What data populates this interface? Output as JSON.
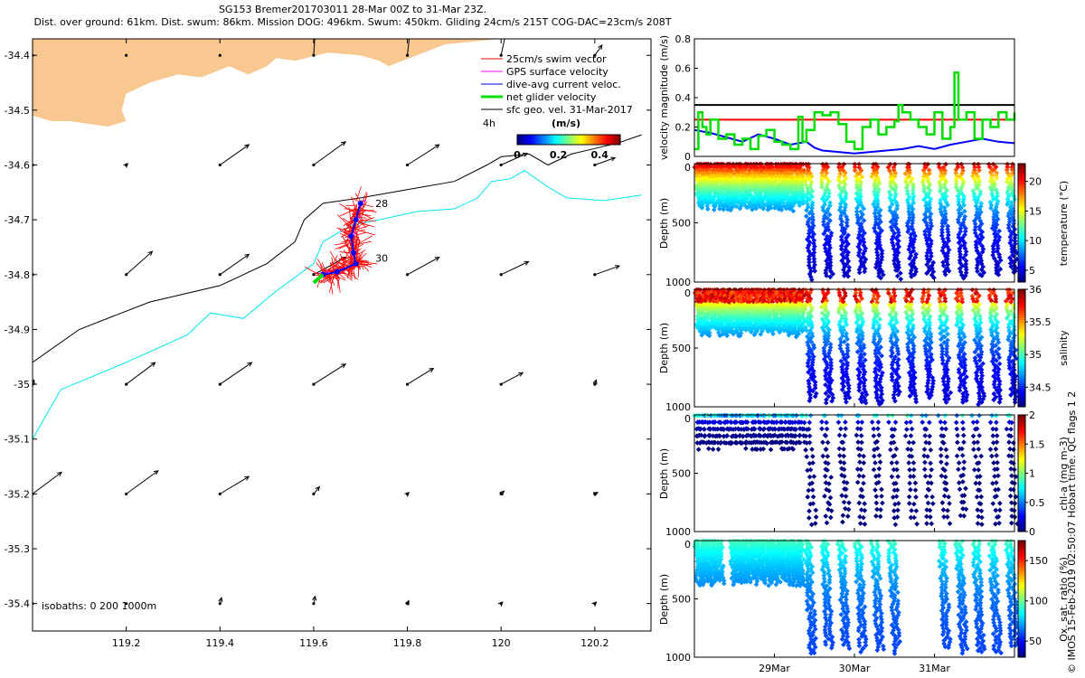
{
  "titles": {
    "line1": "SG153 Bremer201703011 28-Mar 00Z to 31-Mar 23Z.",
    "line2": "Dist. over ground: 61km. Dist. swum: 86km. Mission DOG: 496km. Swum: 450km. Gliding 24cm/s 215T COG-DAC=23cm/s 208T"
  },
  "watermark": "© IMOS 15-Feb-2019 02:50:07 Hobart time. QC flags 1  2",
  "colors": {
    "land": "#f9c891",
    "isobath200": "#000000",
    "isobath1000": "#00e5ee",
    "swim": "#ff0000",
    "gps": "#ff00ff",
    "dac": "#0000ff",
    "net": "#00dd00",
    "sfc": "#000000"
  },
  "chart_data": [
    {
      "type": "map",
      "xlim": [
        119.0,
        120.32
      ],
      "ylim": [
        -35.45,
        -34.37
      ],
      "xticks": [
        119.2,
        119.4,
        119.6,
        119.8,
        120,
        120.2
      ],
      "xtick_labels": [
        "119.2",
        "119.4",
        "119.6",
        "119.8",
        "120",
        "120.2"
      ],
      "yticks": [
        -34.4,
        -34.5,
        -34.6,
        -34.7,
        -34.8,
        -34.9,
        -35,
        -35.1,
        -35.2,
        -35.3,
        -35.4
      ],
      "ytick_labels": [
        "-34.4",
        "-34.5",
        "-34.6",
        "-34.7",
        "-34.8",
        "-34.9",
        "-35",
        "-35.1",
        "-35.2",
        "-35.3",
        "-35.4"
      ],
      "legend": [
        {
          "label": "25cm/s swim vector",
          "color": "#ff0000"
        },
        {
          "label": "GPS surface velocity",
          "color": "#ff00ff"
        },
        {
          "label": "dive-avg current veloc.",
          "color": "#0000ff"
        },
        {
          "label": "net glider velocity",
          "color": "#00dd00"
        },
        {
          "label": "sfc geo. vel. 31-Mar-2017",
          "color": "#000000"
        }
      ],
      "legend_extra": "4h",
      "colorbar": {
        "title": "(m/s)",
        "ticks": [
          0,
          0.2,
          0.4
        ],
        "tick_labels": [
          "0",
          "0.2",
          "0.4"
        ],
        "range": [
          0,
          0.5
        ]
      },
      "isobath_label": "isobaths: 0   200  1000m",
      "annotations": [
        {
          "text": "28",
          "lon": 119.72,
          "lat": -34.67
        },
        {
          "text": "30",
          "lon": 119.72,
          "lat": -34.77
        }
      ],
      "land": [
        [
          119.0,
          -34.37
        ],
        [
          120.0,
          -34.37
        ],
        [
          119.88,
          -34.38
        ],
        [
          119.82,
          -34.4
        ],
        [
          119.76,
          -34.42
        ],
        [
          119.74,
          -34.41
        ],
        [
          119.7,
          -34.4
        ],
        [
          119.63,
          -34.395
        ],
        [
          119.56,
          -34.41
        ],
        [
          119.52,
          -34.405
        ],
        [
          119.5,
          -34.42
        ],
        [
          119.46,
          -34.435
        ],
        [
          119.42,
          -34.42
        ],
        [
          119.36,
          -34.44
        ],
        [
          119.31,
          -34.435
        ],
        [
          119.25,
          -34.45
        ],
        [
          119.2,
          -34.47
        ],
        [
          119.19,
          -34.5
        ],
        [
          119.2,
          -34.52
        ],
        [
          119.16,
          -34.53
        ],
        [
          119.12,
          -34.525
        ],
        [
          119.08,
          -34.52
        ],
        [
          119.04,
          -34.52
        ],
        [
          119.0,
          -34.51
        ]
      ],
      "isobath_200": [
        [
          119.0,
          -34.96
        ],
        [
          119.1,
          -34.9
        ],
        [
          119.25,
          -34.85
        ],
        [
          119.4,
          -34.82
        ],
        [
          119.5,
          -34.78
        ],
        [
          119.56,
          -34.74
        ],
        [
          119.58,
          -34.7
        ],
        [
          119.62,
          -34.67
        ],
        [
          119.7,
          -34.66
        ],
        [
          119.8,
          -34.645
        ],
        [
          119.9,
          -34.63
        ],
        [
          119.97,
          -34.6
        ],
        [
          120.0,
          -34.585
        ],
        [
          120.06,
          -34.58
        ],
        [
          120.1,
          -34.6
        ],
        [
          120.15,
          -34.58
        ],
        [
          120.2,
          -34.57
        ],
        [
          120.25,
          -34.56
        ],
        [
          120.3,
          -34.545
        ]
      ],
      "isobath_1000": [
        [
          119.0,
          -35.1
        ],
        [
          119.06,
          -35.01
        ],
        [
          119.2,
          -34.96
        ],
        [
          119.33,
          -34.91
        ],
        [
          119.38,
          -34.87
        ],
        [
          119.45,
          -34.88
        ],
        [
          119.52,
          -34.83
        ],
        [
          119.6,
          -34.78
        ],
        [
          119.62,
          -34.74
        ],
        [
          119.68,
          -34.71
        ],
        [
          119.74,
          -34.7
        ],
        [
          119.82,
          -34.685
        ],
        [
          119.9,
          -34.68
        ],
        [
          119.95,
          -34.66
        ],
        [
          119.98,
          -34.63
        ],
        [
          120.02,
          -34.625
        ],
        [
          120.05,
          -34.61
        ],
        [
          120.1,
          -34.64
        ],
        [
          120.14,
          -34.66
        ],
        [
          120.22,
          -34.665
        ],
        [
          120.3,
          -34.655
        ]
      ],
      "track": [
        [
          119.7,
          -34.67
        ],
        [
          119.69,
          -34.7
        ],
        [
          119.68,
          -34.73
        ],
        [
          119.685,
          -34.76
        ],
        [
          119.69,
          -34.78
        ],
        [
          119.65,
          -34.795
        ],
        [
          119.62,
          -34.8
        ]
      ],
      "net_vector": {
        "lon": 119.62,
        "lat": -34.8,
        "dlon": -0.02,
        "dlat": -0.015
      },
      "geo_vel_lons": [
        119.0,
        119.2,
        119.4,
        119.6,
        119.8,
        120.0,
        120.2
      ],
      "geo_vel_lats": [
        -34.4,
        -34.6,
        -34.8,
        -35.0,
        -35.2,
        -35.4
      ],
      "geo_vel_uv": [
        [
          [
            0,
            0
          ],
          [
            0,
            0
          ],
          [
            0,
            0
          ],
          [
            0.01,
            0.16
          ],
          [
            0.02,
            0.18
          ],
          [
            0.03,
            0.14
          ],
          [
            0.05,
            0.07
          ]
        ],
        [
          [
            0,
            0
          ],
          [
            0.01,
            0.01
          ],
          [
            0.2,
            0.14
          ],
          [
            0.22,
            0.16
          ],
          [
            0.22,
            0.14
          ],
          [
            0.18,
            0.08
          ],
          [
            0.14,
            0.05
          ]
        ],
        [
          [
            0,
            0
          ],
          [
            0.18,
            0.16
          ],
          [
            0.2,
            0.14
          ],
          [
            0.22,
            0.12
          ],
          [
            0.22,
            0.12
          ],
          [
            0.19,
            0.09
          ],
          [
            0.17,
            0.06
          ]
        ],
        [
          [
            0.01,
            0.03
          ],
          [
            0.2,
            0.15
          ],
          [
            0.22,
            0.15
          ],
          [
            0.22,
            0.14
          ],
          [
            0.18,
            0.11
          ],
          [
            0.15,
            0.08
          ],
          [
            0.01,
            0.03
          ]
        ],
        [
          [
            0.2,
            0.15
          ],
          [
            0.22,
            0.16
          ],
          [
            0.2,
            0.12
          ],
          [
            0.04,
            0.05
          ],
          [
            0.01,
            0.01
          ],
          [
            0.02,
            0.02
          ],
          [
            0.02,
            0.01
          ]
        ],
        [
          [
            0,
            0
          ],
          [
            0,
            0
          ],
          [
            0.01,
            0.04
          ],
          [
            0.01,
            0.05
          ],
          [
            0.01,
            0.02
          ],
          [
            0.01,
            0.01
          ],
          [
            0.01,
            0.01
          ]
        ]
      ]
    },
    {
      "type": "line",
      "ylabel": "velocity magnitude (m/s)",
      "xlim": [
        0,
        4
      ],
      "ylim": [
        0,
        0.8
      ],
      "yticks": [
        0,
        0.2,
        0.4,
        0.6,
        0.8
      ],
      "ytick_labels": [
        "0",
        "0.2",
        "0.4",
        "0.6",
        "0.8"
      ],
      "series": [
        {
          "name": "black",
          "color": "#000000",
          "x": [
            0,
            4
          ],
          "values": [
            0.35,
            0.35
          ]
        },
        {
          "name": "red",
          "color": "#ff0000",
          "x": [
            0,
            4
          ],
          "values": [
            0.25,
            0.25
          ]
        },
        {
          "name": "blue",
          "color": "#0000ff",
          "x": [
            0,
            0.2,
            0.4,
            0.6,
            0.8,
            1.0,
            1.2,
            1.4,
            1.5,
            1.6,
            1.8,
            2.0,
            2.2,
            2.4,
            2.6,
            2.8,
            3.0,
            3.2,
            3.4,
            3.6,
            3.8,
            4.0
          ],
          "values": [
            0.18,
            0.16,
            0.13,
            0.1,
            0.15,
            0.12,
            0.08,
            0.1,
            0.06,
            0.04,
            0.03,
            0.02,
            0.03,
            0.04,
            0.05,
            0.07,
            0.05,
            0.08,
            0.1,
            0.12,
            0.1,
            0.09
          ]
        },
        {
          "name": "green",
          "color": "#00dd00",
          "x": [
            0,
            0.05,
            0.1,
            0.15,
            0.2,
            0.3,
            0.4,
            0.5,
            0.6,
            0.7,
            0.8,
            0.9,
            1.0,
            1.1,
            1.2,
            1.3,
            1.35,
            1.4,
            1.5,
            1.6,
            1.7,
            1.8,
            1.9,
            2.0,
            2.1,
            2.2,
            2.3,
            2.4,
            2.5,
            2.55,
            2.6,
            2.7,
            2.8,
            2.9,
            3.0,
            3.1,
            3.2,
            3.25,
            3.3,
            3.4,
            3.5,
            3.6,
            3.7,
            3.8,
            3.9,
            4.0
          ],
          "values": [
            0.05,
            0.3,
            0.2,
            0.15,
            0.25,
            0.12,
            0.15,
            0.08,
            0.12,
            0.05,
            0.14,
            0.18,
            0.1,
            0.08,
            0.05,
            0.27,
            0.1,
            0.18,
            0.3,
            0.28,
            0.3,
            0.22,
            0.1,
            0.05,
            0.2,
            0.25,
            0.15,
            0.2,
            0.24,
            0.35,
            0.3,
            0.25,
            0.2,
            0.15,
            0.3,
            0.12,
            0.2,
            0.57,
            0.25,
            0.3,
            0.12,
            0.25,
            0.2,
            0.3,
            0.25,
            0.3
          ]
        }
      ]
    },
    {
      "type": "scatter",
      "name": "temperature",
      "ylabel": "Depth (m)",
      "ylim": [
        1000,
        0
      ],
      "yticks": [
        500,
        1000
      ],
      "ytick_labels": [
        "500",
        "1000"
      ],
      "colorbar": {
        "label": "temperature (°C)",
        "range": [
          3,
          23
        ],
        "ticks": [
          5,
          10,
          15,
          20
        ],
        "tick_labels": [
          "5",
          "10",
          "15",
          "20"
        ]
      },
      "profile": {
        "shallow_end_day": 1.35,
        "shallow_max_depth": 390,
        "deep_max_depth": 990,
        "surface_value": 22,
        "deep_value": 3.5,
        "decay_m": 300
      }
    },
    {
      "type": "scatter",
      "name": "salinity",
      "ylabel": "Depth (m)",
      "ylim": [
        1000,
        0
      ],
      "yticks": [
        500,
        1000
      ],
      "ytick_labels": [
        "500",
        "1000"
      ],
      "colorbar": {
        "label": "salinity",
        "range": [
          34.2,
          36
        ],
        "ticks": [
          34.5,
          35,
          35.5,
          36
        ],
        "tick_labels": [
          "34.5",
          "35",
          "35.5",
          "36"
        ]
      },
      "profile": {
        "shallow_end_day": 1.35,
        "shallow_max_depth": 390,
        "deep_max_depth": 990,
        "surface_value": 35.9,
        "deep_value": 34.3,
        "decay_m": 280
      }
    },
    {
      "type": "scatter",
      "name": "chl-a",
      "ylabel": "Depth (m)",
      "ylim": [
        1000,
        0
      ],
      "yticks": [
        500,
        1000
      ],
      "ytick_labels": [
        "500",
        "1000"
      ],
      "colorbar": {
        "label": "chl-a (mg m-3)",
        "range": [
          0,
          2
        ],
        "ticks": [
          0,
          0.5,
          1,
          1.5,
          2
        ],
        "tick_labels": [
          "0",
          "0.5",
          "1",
          "1.5",
          "2"
        ]
      },
      "profile": {
        "shallow_end_day": 1.35,
        "shallow_max_depth": 300,
        "deep_max_depth": 980,
        "surface_value": 0.5,
        "deep_value": 0.0,
        "decay_m": 60,
        "sparse": true
      }
    },
    {
      "type": "scatter",
      "name": "oxygen",
      "ylabel": "Depth (m)",
      "ylim": [
        1000,
        0
      ],
      "yticks": [
        500,
        1000
      ],
      "ytick_labels": [
        "500",
        "1000"
      ],
      "colorbar": {
        "label": "Ox. sat. ratio (%)",
        "range": [
          30,
          175
        ],
        "ticks": [
          50,
          100,
          150
        ],
        "tick_labels": [
          "50",
          "100",
          "150"
        ]
      },
      "profile": {
        "shallow_end_day": 1.35,
        "shallow_max_depth": 380,
        "deep_max_depth": 990,
        "surface_value": 95,
        "deep_value": 55,
        "decay_m": 350,
        "gappy": true
      },
      "xticks": [
        1,
        2,
        3
      ],
      "xtick_labels": [
        "29Mar",
        "30Mar",
        "31Mar"
      ]
    }
  ]
}
